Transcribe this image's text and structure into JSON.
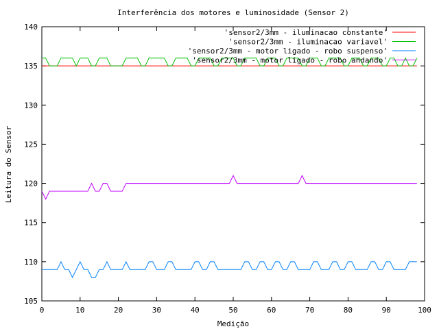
{
  "chart_data": {
    "type": "line",
    "title": "Interferência dos motores e luminosidade (Sensor 2)",
    "xlabel": "Medição",
    "ylabel": "Leitura do Sensor",
    "xlim": [
      0,
      100
    ],
    "ylim": [
      105,
      140
    ],
    "xticks": [
      0,
      10,
      20,
      30,
      40,
      50,
      60,
      70,
      80,
      90,
      100
    ],
    "yticks": [
      105,
      110,
      115,
      120,
      125,
      130,
      135,
      140
    ],
    "grid": false,
    "legend_position": "top-right",
    "series": [
      {
        "name": "'sensor2/3mm - iluminacao constante'",
        "color": "#ff0000",
        "x": [
          0,
          98
        ],
        "y": [
          135,
          135
        ]
      },
      {
        "name": "'sensor2/3mm - iluminacao variavel'",
        "color": "#00c000",
        "x": [
          0,
          1,
          2,
          3,
          4,
          5,
          6,
          7,
          8,
          9,
          10,
          11,
          12,
          13,
          14,
          15,
          16,
          17,
          18,
          19,
          20,
          21,
          22,
          23,
          24,
          25,
          26,
          27,
          28,
          29,
          30,
          31,
          32,
          33,
          34,
          35,
          36,
          37,
          38,
          39,
          40,
          41,
          42,
          43,
          44,
          45,
          46,
          47,
          48,
          49,
          50,
          51,
          52,
          53,
          54,
          55,
          56,
          57,
          58,
          59,
          60,
          61,
          62,
          63,
          64,
          65,
          66,
          67,
          68,
          69,
          70,
          71,
          72,
          73,
          74,
          75,
          76,
          77,
          78,
          79,
          80,
          81,
          82,
          83,
          84,
          85,
          86,
          87,
          88,
          89,
          90,
          91,
          92,
          93,
          94,
          95,
          96,
          97,
          98
        ],
        "y": [
          136,
          136,
          135,
          135,
          135,
          136,
          136,
          136,
          136,
          135,
          136,
          136,
          136,
          135,
          135,
          136,
          136,
          136,
          135,
          135,
          135,
          135,
          136,
          136,
          136,
          136,
          135,
          135,
          136,
          136,
          136,
          136,
          136,
          135,
          135,
          136,
          136,
          136,
          136,
          135,
          135,
          136,
          136,
          136,
          136,
          135,
          135,
          136,
          136,
          136,
          136,
          135,
          135,
          136,
          136,
          136,
          136,
          135,
          135,
          136,
          136,
          136,
          135,
          135,
          136,
          136,
          136,
          136,
          135,
          135,
          136,
          136,
          136,
          135,
          135,
          136,
          136,
          136,
          136,
          135,
          135,
          136,
          136,
          136,
          135,
          135,
          136,
          136,
          136,
          135,
          135,
          136,
          136,
          135,
          135,
          136,
          135,
          135,
          136
        ]
      },
      {
        "name": "'sensor2/3mm - motor ligado - robo suspenso'",
        "color": "#0080ff",
        "x": [
          0,
          1,
          2,
          3,
          4,
          5,
          6,
          7,
          8,
          9,
          10,
          11,
          12,
          13,
          14,
          15,
          16,
          17,
          18,
          19,
          20,
          21,
          22,
          23,
          24,
          25,
          26,
          27,
          28,
          29,
          30,
          31,
          32,
          33,
          34,
          35,
          36,
          37,
          38,
          39,
          40,
          41,
          42,
          43,
          44,
          45,
          46,
          47,
          48,
          49,
          50,
          51,
          52,
          53,
          54,
          55,
          56,
          57,
          58,
          59,
          60,
          61,
          62,
          63,
          64,
          65,
          66,
          67,
          68,
          69,
          70,
          71,
          72,
          73,
          74,
          75,
          76,
          77,
          78,
          79,
          80,
          81,
          82,
          83,
          84,
          85,
          86,
          87,
          88,
          89,
          90,
          91,
          92,
          93,
          94,
          95,
          96,
          97,
          98
        ],
        "y": [
          109,
          109,
          109,
          109,
          109,
          110,
          109,
          109,
          108,
          109,
          110,
          109,
          109,
          108,
          108,
          109,
          109,
          110,
          109,
          109,
          109,
          109,
          110,
          109,
          109,
          109,
          109,
          109,
          110,
          110,
          109,
          109,
          109,
          110,
          110,
          109,
          109,
          109,
          109,
          109,
          110,
          110,
          109,
          109,
          110,
          110,
          109,
          109,
          109,
          109,
          109,
          109,
          109,
          110,
          110,
          109,
          109,
          110,
          110,
          109,
          109,
          110,
          110,
          109,
          109,
          110,
          110,
          109,
          109,
          109,
          109,
          110,
          110,
          109,
          109,
          109,
          110,
          110,
          109,
          109,
          110,
          110,
          109,
          109,
          109,
          109,
          110,
          110,
          109,
          109,
          110,
          110,
          109,
          109,
          109,
          109,
          110,
          110,
          110
        ]
      },
      {
        "name": "'sensor2/3mm - motor ligado - robo andando'",
        "color": "#c000ff",
        "x": [
          0,
          1,
          2,
          3,
          4,
          5,
          6,
          7,
          8,
          9,
          10,
          11,
          12,
          13,
          14,
          15,
          16,
          17,
          18,
          19,
          20,
          21,
          22,
          23,
          24,
          25,
          26,
          27,
          28,
          29,
          30,
          31,
          32,
          33,
          34,
          35,
          36,
          37,
          38,
          39,
          40,
          41,
          42,
          43,
          44,
          45,
          46,
          47,
          48,
          49,
          50,
          51,
          52,
          53,
          54,
          55,
          56,
          57,
          58,
          59,
          60,
          61,
          62,
          63,
          64,
          65,
          66,
          67,
          68,
          69,
          70,
          71,
          72,
          73,
          74,
          75,
          76,
          77,
          78,
          79,
          80,
          81,
          82,
          83,
          84,
          85,
          86,
          87,
          88,
          89,
          90,
          91,
          92,
          93,
          94,
          95,
          96,
          97,
          98
        ],
        "y": [
          119,
          118,
          119,
          119,
          119,
          119,
          119,
          119,
          119,
          119,
          119,
          119,
          119,
          120,
          119,
          119,
          120,
          120,
          119,
          119,
          119,
          119,
          120,
          120,
          120,
          120,
          120,
          120,
          120,
          120,
          120,
          120,
          120,
          120,
          120,
          120,
          120,
          120,
          120,
          120,
          120,
          120,
          120,
          120,
          120,
          120,
          120,
          120,
          120,
          120,
          121,
          120,
          120,
          120,
          120,
          120,
          120,
          120,
          120,
          120,
          120,
          120,
          120,
          120,
          120,
          120,
          120,
          120,
          121,
          120,
          120,
          120,
          120,
          120,
          120,
          120,
          120,
          120,
          120,
          120,
          120,
          120,
          120,
          120,
          120,
          120,
          120,
          120,
          120,
          120,
          120,
          120,
          120,
          120,
          120,
          120,
          120,
          120,
          120
        ]
      }
    ]
  }
}
